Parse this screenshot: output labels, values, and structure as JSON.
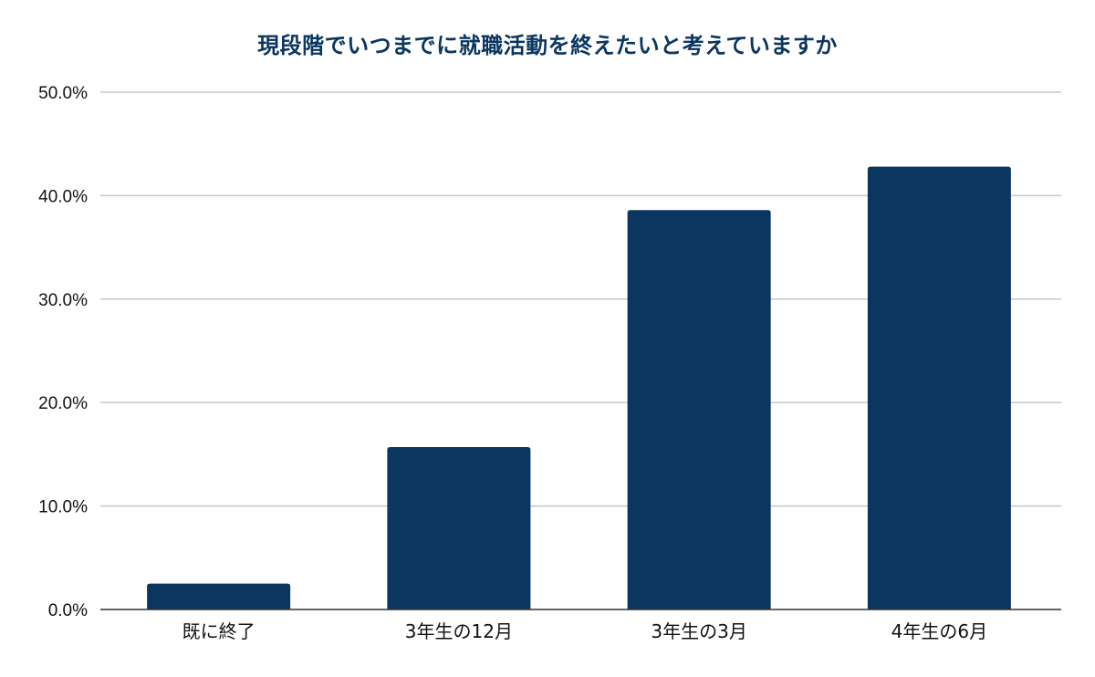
{
  "chart_data": {
    "type": "bar",
    "title": "現段階でいつまでに就職活動を終えたいと考えていますか",
    "categories": [
      "既に終了",
      "3年生の12月",
      "3年生の3月",
      "4年生の6月"
    ],
    "values": [
      2.5,
      15.7,
      38.6,
      42.8
    ],
    "ylim": [
      0,
      50
    ],
    "yticks": [
      "0.0%",
      "10.0%",
      "20.0%",
      "30.0%",
      "40.0%",
      "50.0%"
    ],
    "ytick_values": [
      0,
      10,
      20,
      30,
      40,
      50
    ],
    "xlabel": "",
    "ylabel": "",
    "grid": true,
    "legend": "none",
    "bar_color": "#0b3660",
    "grid_color": "#c8c8c8",
    "axis_color": "#333333"
  }
}
